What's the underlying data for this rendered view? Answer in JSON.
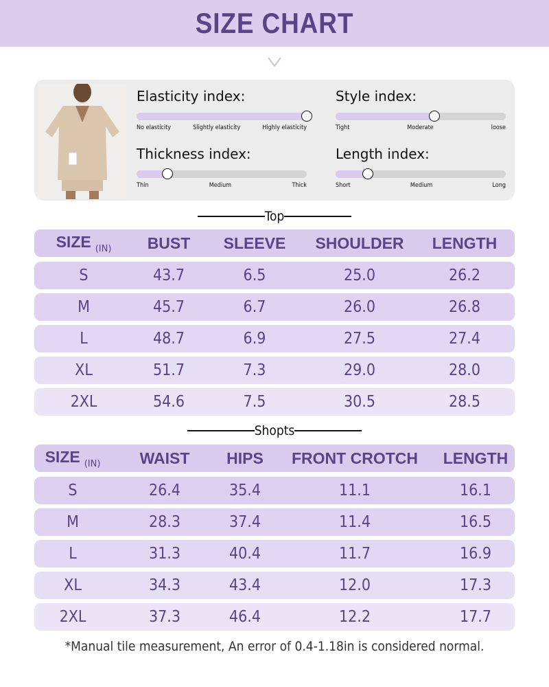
{
  "title": "SIZE CHART",
  "colors": {
    "accent": "#5a4488",
    "banner": "#dccdef",
    "slider_fill": "#d9cbee"
  },
  "indices": [
    {
      "label": "Elasticity index:",
      "ticks": [
        "No elasticity",
        "Slightly elasticity",
        "Highly elasticity"
      ],
      "level": 1.0
    },
    {
      "label": "Style index:",
      "ticks": [
        "Tight",
        "Moderate",
        "loose"
      ],
      "level": 0.58
    },
    {
      "label": "Thickness index:",
      "ticks": [
        "Thin",
        "Medium",
        "Thick"
      ],
      "level": 0.18
    },
    {
      "label": "Length index:",
      "ticks": [
        "Short",
        "Medium",
        "Long"
      ],
      "level": 0.19
    }
  ],
  "top": {
    "section": "Top",
    "unit": "(IN)",
    "headers": [
      "SIZE",
      "BUST",
      "SLEEVE",
      "SHOULDER",
      "LENGTH"
    ],
    "rows": [
      [
        "S",
        "43.7",
        "6.5",
        "25.0",
        "26.2"
      ],
      [
        "M",
        "45.7",
        "6.7",
        "26.0",
        "26.8"
      ],
      [
        "L",
        "48.7",
        "6.9",
        "27.5",
        "27.4"
      ],
      [
        "XL",
        "51.7",
        "7.3",
        "29.0",
        "28.0"
      ],
      [
        "2XL",
        "54.6",
        "7.5",
        "30.5",
        "28.5"
      ]
    ]
  },
  "shorts": {
    "section": "Shopts",
    "unit": "(IN)",
    "headers": [
      "SIZE",
      "WAIST",
      "HIPS",
      "FRONT CROTCH",
      "LENGTH"
    ],
    "rows": [
      [
        "S",
        "26.4",
        "35.4",
        "11.1",
        "16.1"
      ],
      [
        "M",
        "28.3",
        "37.4",
        "11.4",
        "16.5"
      ],
      [
        "L",
        "31.3",
        "40.4",
        "11.7",
        "16.9"
      ],
      [
        "XL",
        "34.3",
        "43.4",
        "12.0",
        "17.3"
      ],
      [
        "2XL",
        "37.3",
        "46.4",
        "12.2",
        "17.7"
      ]
    ]
  },
  "note": "*Manual tile measurement, An error of 0.4-1.18in is considered normal."
}
